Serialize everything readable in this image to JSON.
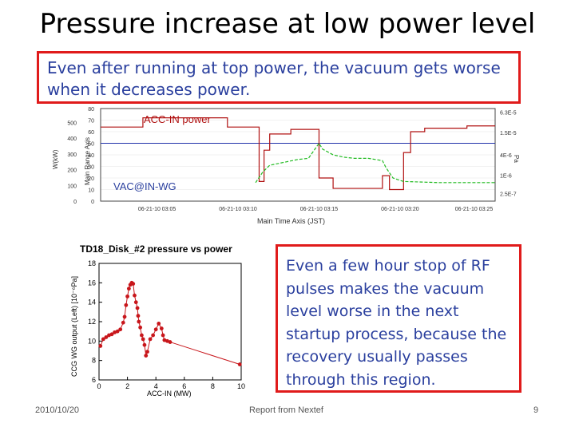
{
  "slide": {
    "title": "Pressure increase at low power level",
    "top_note": "Even after running at top power, the vacuum gets worse when it decreases power.",
    "side_note": "Even a few hour stop of RF pulses makes the vacuum level worse in the next startup process, because the recovery usually passes through this region.",
    "footer_date": "2010/10/20",
    "footer_center": "Report from Nextef",
    "page_number": "9"
  },
  "colors": {
    "box_border": "#e01b1b",
    "note_text": "#2a3f9e",
    "power_line": "#b01010",
    "vac_line": "#22bb22",
    "ref_line": "#2233aa",
    "scatter": "#c8161b"
  },
  "chart_data": [
    {
      "type": "line",
      "annotations": [
        "ACC-IN power",
        "VAC@IN-WG"
      ],
      "xlabel": "Main Time Axis (JST)",
      "ylabel_left_outer": "W(kW)",
      "ylabel_left_inner": "Main Range Axis",
      "x_ticks": [
        "06-21-10 03:05",
        "06-21-10 03:10",
        "06-21-10 03:15",
        "06-21-10 03:20",
        "06-21-10 03:25"
      ],
      "y_ticks_outer": [
        "0",
        "100",
        "200",
        "300",
        "400",
        "500"
      ],
      "y_ticks_inner": [
        "0",
        "10",
        "20",
        "30",
        "40",
        "50",
        "60",
        "70",
        "80"
      ],
      "y_ticks_right": [
        "2.5E-7",
        "1E-6",
        "4E-6",
        "1.5E-5",
        "6.3E-5"
      ],
      "right_axis_label": "Pa",
      "ylim": [
        0,
        80
      ],
      "series": [
        {
          "role": "power",
          "points": [
            [
              0,
              64
            ],
            [
              6,
              64
            ],
            [
              6,
              72
            ],
            [
              18,
              72
            ],
            [
              18,
              64
            ],
            [
              22.5,
              64
            ],
            [
              22.5,
              17
            ],
            [
              23.2,
              17
            ],
            [
              23.2,
              44
            ],
            [
              24,
              44
            ],
            [
              24,
              58
            ],
            [
              27,
              58
            ],
            [
              27,
              62
            ],
            [
              31,
              62
            ],
            [
              31,
              20
            ],
            [
              33,
              20
            ],
            [
              33,
              11
            ],
            [
              40,
              11
            ],
            [
              40,
              22
            ],
            [
              41,
              22
            ],
            [
              41,
              10
            ],
            [
              43,
              10
            ],
            [
              43,
              42
            ],
            [
              44,
              42
            ],
            [
              44,
              60
            ],
            [
              46,
              60
            ],
            [
              46,
              63
            ],
            [
              52,
              63
            ],
            [
              52,
              65
            ],
            [
              56,
              65
            ]
          ]
        },
        {
          "role": "vacuum",
          "points": [
            [
              22,
              16
            ],
            [
              23,
              25
            ],
            [
              24,
              31
            ],
            [
              28,
              36
            ],
            [
              29.5,
              37
            ],
            [
              31,
              50
            ],
            [
              31.5,
              45
            ],
            [
              33,
              40
            ],
            [
              34.5,
              38
            ],
            [
              36,
              37
            ],
            [
              38,
              37
            ],
            [
              39,
              36
            ],
            [
              40,
              35
            ],
            [
              40.5,
              29
            ],
            [
              41.5,
              20
            ],
            [
              43,
              17
            ],
            [
              48,
              16
            ],
            [
              56,
              16
            ]
          ]
        }
      ],
      "reference_level": 50
    },
    {
      "type": "scatter",
      "title": "TD18_Disk_#2   pressure vs power",
      "xlabel": "ACC-IN (MW)",
      "ylabel": "CCG WG output (Left) [10⁻⁶Pa]",
      "xlim": [
        0,
        10
      ],
      "ylim": [
        6,
        18
      ],
      "x_ticks": [
        "0",
        "2",
        "4",
        "6",
        "8",
        "10"
      ],
      "y_ticks": [
        "6",
        "8",
        "10",
        "12",
        "14",
        "16",
        "18"
      ],
      "series": [
        {
          "points": [
            [
              0.1,
              9.5
            ],
            [
              0.3,
              10.2
            ],
            [
              0.5,
              10.4
            ],
            [
              0.7,
              10.6
            ],
            [
              0.9,
              10.7
            ],
            [
              1.1,
              10.9
            ],
            [
              1.3,
              11.0
            ],
            [
              1.5,
              11.2
            ],
            [
              1.7,
              11.9
            ],
            [
              1.8,
              12.5
            ],
            [
              1.9,
              13.7
            ],
            [
              2.0,
              14.6
            ],
            [
              2.1,
              15.4
            ],
            [
              2.2,
              15.8
            ],
            [
              2.3,
              16.0
            ],
            [
              2.4,
              15.9
            ],
            [
              2.5,
              14.7
            ],
            [
              2.6,
              14.0
            ],
            [
              2.7,
              13.4
            ],
            [
              2.75,
              12.6
            ],
            [
              2.8,
              12.0
            ],
            [
              2.9,
              11.4
            ],
            [
              3.0,
              10.6
            ],
            [
              3.1,
              10.2
            ],
            [
              3.2,
              9.6
            ],
            [
              3.3,
              8.5
            ],
            [
              3.4,
              8.9
            ],
            [
              3.6,
              10.2
            ],
            [
              3.8,
              10.6
            ],
            [
              4.0,
              11.2
            ],
            [
              4.2,
              11.8
            ],
            [
              4.4,
              11.3
            ],
            [
              4.5,
              10.6
            ],
            [
              4.6,
              10.1
            ],
            [
              4.8,
              10.0
            ],
            [
              5.0,
              9.9
            ],
            [
              9.9,
              7.6
            ]
          ]
        }
      ]
    }
  ]
}
